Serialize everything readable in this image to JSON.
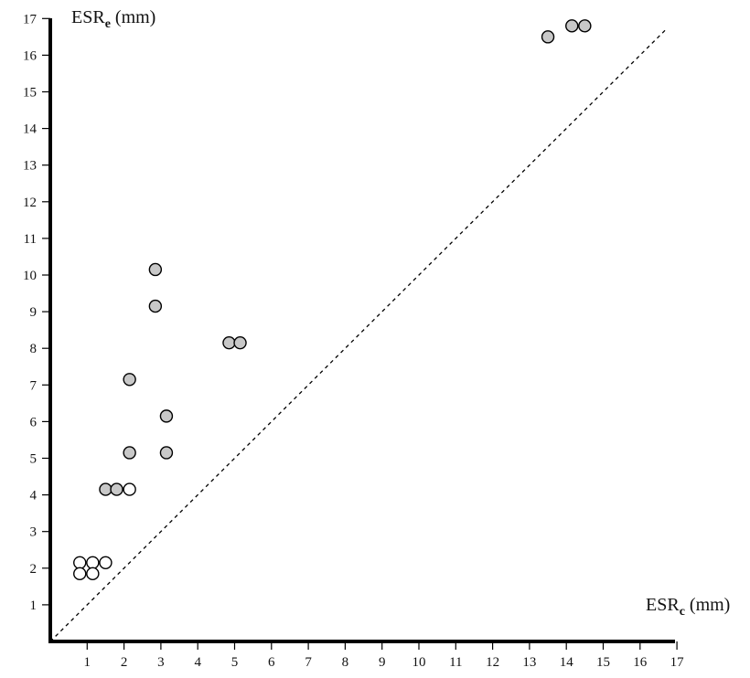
{
  "chart_data": {
    "type": "scatter",
    "title": "",
    "xlabel": {
      "main": "ESR",
      "sub": "c",
      "unit": " (mm)"
    },
    "ylabel": {
      "main": "ESR",
      "sub": "e",
      "unit": " (mm)"
    },
    "xlim": [
      0,
      17
    ],
    "ylim": [
      0,
      17
    ],
    "x_ticks": [
      "1",
      "2",
      "3",
      "4",
      "5",
      "6",
      "7",
      "8",
      "9",
      "10",
      "11",
      "12",
      "13",
      "14",
      "15",
      "16",
      "17"
    ],
    "y_ticks": [
      "1",
      "2",
      "3",
      "4",
      "5",
      "6",
      "7",
      "8",
      "9",
      "10",
      "11",
      "12",
      "13",
      "14",
      "15",
      "16",
      "17"
    ],
    "grid": false,
    "reference_line": {
      "style": "dashed",
      "from": [
        0,
        0
      ],
      "to": [
        16.7,
        16.7
      ]
    },
    "series": [
      {
        "fill": "#c8c8c8",
        "points": [
          [
            1.5,
            4.15
          ],
          [
            1.8,
            4.15
          ],
          [
            2.15,
            5.15
          ],
          [
            2.15,
            7.15
          ],
          [
            2.85,
            9.15
          ],
          [
            2.85,
            10.15
          ],
          [
            3.15,
            5.15
          ],
          [
            3.15,
            6.15
          ],
          [
            4.85,
            8.15
          ],
          [
            5.15,
            8.15
          ],
          [
            13.5,
            16.5
          ],
          [
            14.15,
            16.8
          ],
          [
            14.5,
            16.8
          ]
        ]
      },
      {
        "fill": "#ffffff",
        "points": [
          [
            0.8,
            2.15
          ],
          [
            1.15,
            2.15
          ],
          [
            1.5,
            2.15
          ],
          [
            2.15,
            4.15
          ],
          [
            0.8,
            1.85
          ],
          [
            1.15,
            1.85
          ]
        ]
      }
    ]
  },
  "colors": {
    "axis": "#000000",
    "marker_stroke": "#000000",
    "gray_marker": "#c8c8c8",
    "white_marker": "#ffffff"
  }
}
